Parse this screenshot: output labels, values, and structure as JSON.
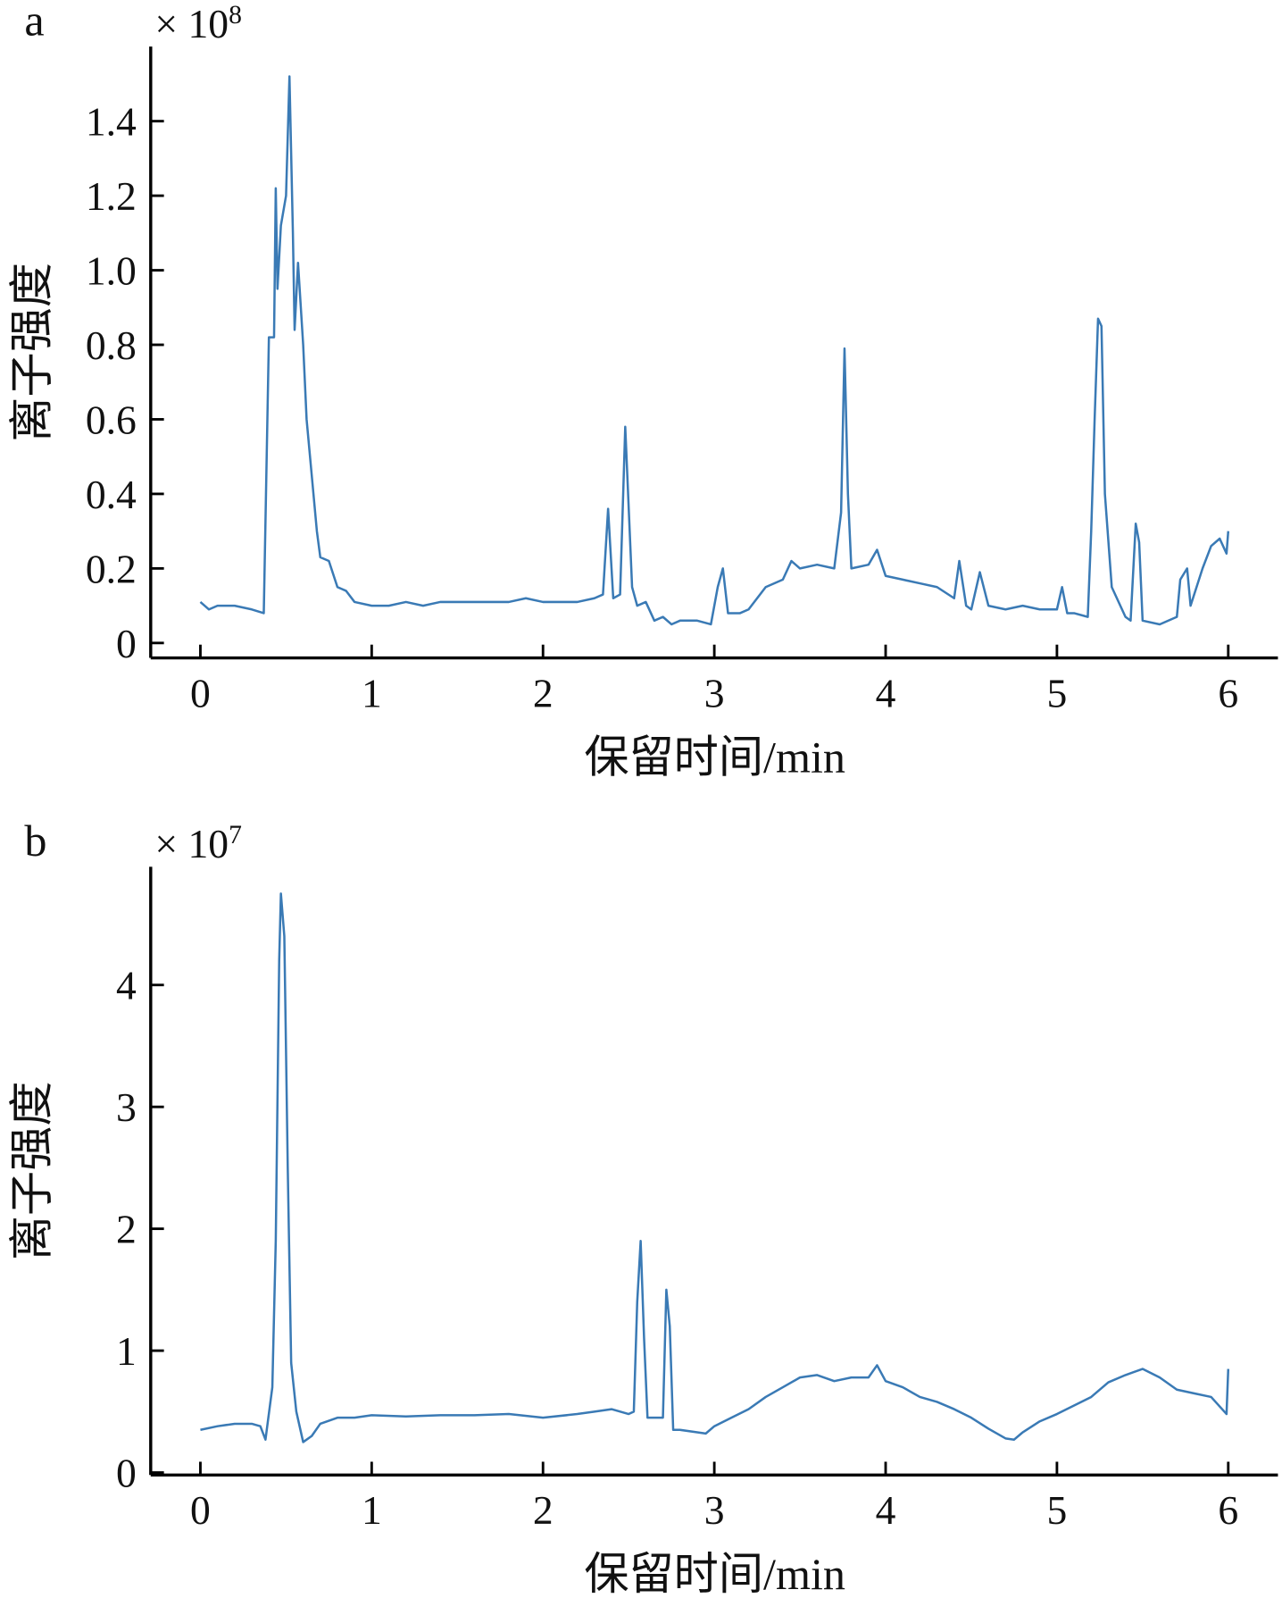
{
  "chart_data": [
    {
      "type": "line",
      "panel_label": "a",
      "multiplier": {
        "base": "× 10",
        "exponent": "8"
      },
      "ylabel": "离子强度",
      "xlabel": "保留时间/min",
      "color": "#3a7ab5",
      "xlim": [
        -0.29,
        6.29
      ],
      "xticks": [
        0,
        1,
        2,
        3,
        4,
        5,
        6
      ],
      "ylim": [
        -0.04,
        1.6
      ],
      "yticks": [
        0,
        0.2,
        0.4,
        0.6,
        0.8,
        {
          "value": 1,
          "label": "1.0"
        },
        1.2,
        1.4
      ],
      "x": [
        0,
        0.05,
        0.1,
        0.2,
        0.3,
        0.37,
        0.4,
        0.43,
        0.44,
        0.45,
        0.47,
        0.5,
        0.52,
        0.54,
        0.55,
        0.57,
        0.6,
        0.62,
        0.65,
        0.68,
        0.7,
        0.75,
        0.8,
        0.85,
        0.9,
        1.0,
        1.1,
        1.2,
        1.3,
        1.4,
        1.5,
        1.6,
        1.7,
        1.8,
        1.9,
        2.0,
        2.1,
        2.2,
        2.3,
        2.35,
        2.38,
        2.41,
        2.45,
        2.48,
        2.52,
        2.55,
        2.6,
        2.65,
        2.7,
        2.75,
        2.8,
        2.9,
        2.98,
        3.02,
        3.05,
        3.08,
        3.15,
        3.2,
        3.25,
        3.3,
        3.4,
        3.45,
        3.5,
        3.6,
        3.7,
        3.74,
        3.76,
        3.78,
        3.8,
        3.9,
        3.95,
        4.0,
        4.1,
        4.2,
        4.3,
        4.4,
        4.43,
        4.47,
        4.5,
        4.55,
        4.6,
        4.7,
        4.8,
        4.9,
        5.0,
        5.03,
        5.06,
        5.1,
        5.18,
        5.2,
        5.22,
        5.24,
        5.26,
        5.28,
        5.32,
        5.4,
        5.43,
        5.46,
        5.48,
        5.5,
        5.6,
        5.7,
        5.72,
        5.76,
        5.78,
        5.85,
        5.9,
        5.95,
        5.99,
        6.0
      ],
      "values": [
        0.11,
        0.09,
        0.1,
        0.1,
        0.09,
        0.08,
        0.82,
        0.82,
        1.22,
        0.95,
        1.12,
        1.2,
        1.52,
        1.1,
        0.84,
        1.02,
        0.8,
        0.6,
        0.45,
        0.3,
        0.23,
        0.22,
        0.15,
        0.14,
        0.11,
        0.1,
        0.1,
        0.11,
        0.1,
        0.11,
        0.11,
        0.11,
        0.11,
        0.11,
        0.12,
        0.11,
        0.11,
        0.11,
        0.12,
        0.13,
        0.36,
        0.12,
        0.13,
        0.58,
        0.15,
        0.1,
        0.11,
        0.06,
        0.07,
        0.05,
        0.06,
        0.06,
        0.05,
        0.15,
        0.2,
        0.08,
        0.08,
        0.09,
        0.12,
        0.15,
        0.17,
        0.22,
        0.2,
        0.21,
        0.2,
        0.35,
        0.79,
        0.4,
        0.2,
        0.21,
        0.25,
        0.18,
        0.17,
        0.16,
        0.15,
        0.12,
        0.22,
        0.1,
        0.09,
        0.19,
        0.1,
        0.09,
        0.1,
        0.09,
        0.09,
        0.15,
        0.08,
        0.08,
        0.07,
        0.3,
        0.6,
        0.87,
        0.85,
        0.4,
        0.15,
        0.07,
        0.06,
        0.32,
        0.27,
        0.06,
        0.05,
        0.07,
        0.17,
        0.2,
        0.1,
        0.2,
        0.26,
        0.28,
        0.24,
        0.3
      ]
    },
    {
      "type": "line",
      "panel_label": "b",
      "multiplier": {
        "base": "× 10",
        "exponent": "7"
      },
      "ylabel": "离子强度",
      "xlabel": "保留时间/min",
      "color": "#3a7ab5",
      "xlim": [
        -0.29,
        6.29
      ],
      "xticks": [
        0,
        1,
        2,
        3,
        4,
        5,
        6
      ],
      "ylim": [
        -0.02,
        4.97
      ],
      "yticks": [
        0,
        1,
        2,
        3,
        4
      ],
      "x": [
        0,
        0.1,
        0.2,
        0.3,
        0.35,
        0.38,
        0.42,
        0.44,
        0.46,
        0.47,
        0.49,
        0.51,
        0.53,
        0.56,
        0.6,
        0.65,
        0.7,
        0.8,
        0.9,
        1.0,
        1.2,
        1.4,
        1.6,
        1.8,
        2.0,
        2.2,
        2.3,
        2.4,
        2.5,
        2.53,
        2.55,
        2.57,
        2.59,
        2.61,
        2.65,
        2.7,
        2.72,
        2.74,
        2.76,
        2.8,
        2.9,
        2.95,
        3.0,
        3.1,
        3.2,
        3.3,
        3.4,
        3.5,
        3.6,
        3.7,
        3.8,
        3.9,
        3.95,
        4.0,
        4.1,
        4.2,
        4.3,
        4.4,
        4.5,
        4.6,
        4.7,
        4.75,
        4.8,
        4.9,
        5.0,
        5.1,
        5.2,
        5.3,
        5.4,
        5.5,
        5.6,
        5.7,
        5.8,
        5.9,
        5.99,
        6.0
      ],
      "values": [
        0.35,
        0.38,
        0.4,
        0.4,
        0.38,
        0.27,
        0.7,
        1.9,
        4.2,
        4.75,
        4.4,
        2.5,
        0.9,
        0.5,
        0.25,
        0.3,
        0.4,
        0.45,
        0.45,
        0.47,
        0.46,
        0.47,
        0.47,
        0.48,
        0.45,
        0.48,
        0.5,
        0.52,
        0.48,
        0.5,
        1.4,
        1.9,
        1.1,
        0.45,
        0.45,
        0.45,
        1.5,
        1.2,
        0.35,
        0.35,
        0.33,
        0.32,
        0.38,
        0.45,
        0.52,
        0.62,
        0.7,
        0.78,
        0.8,
        0.75,
        0.78,
        0.78,
        0.88,
        0.75,
        0.7,
        0.62,
        0.58,
        0.52,
        0.45,
        0.36,
        0.28,
        0.27,
        0.33,
        0.42,
        0.48,
        0.55,
        0.62,
        0.74,
        0.8,
        0.85,
        0.78,
        0.68,
        0.65,
        0.62,
        0.48,
        0.85
      ]
    }
  ]
}
